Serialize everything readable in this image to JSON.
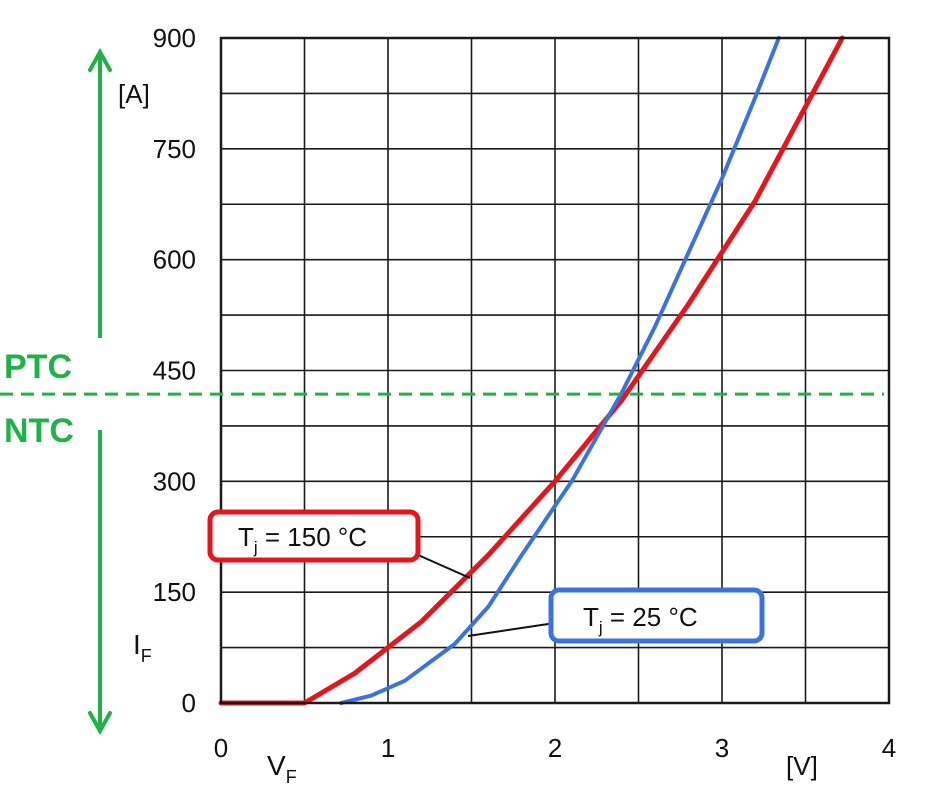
{
  "chart_data": {
    "type": "line",
    "xlim": [
      0,
      4
    ],
    "ylim": [
      0,
      900
    ],
    "x_ticks": [
      "0",
      "1",
      "2",
      "3",
      "4"
    ],
    "y_ticks": [
      "0",
      "150",
      "300",
      "450",
      "600",
      "750",
      "900"
    ],
    "x_unit": "[V]",
    "y_unit": "[A]",
    "xlabel": {
      "main": "V",
      "sub": "F"
    },
    "ylabel": {
      "main": "I",
      "sub": "F"
    },
    "grid": true,
    "series": [
      {
        "name": {
          "main": "T",
          "sub": "j",
          "rest": " = 150 °C"
        },
        "color": "#e8141b",
        "x": [
          0,
          0.5,
          0.8,
          1.2,
          1.6,
          2.0,
          2.4,
          2.8,
          3.2,
          3.72
        ],
        "y": [
          0,
          0,
          40,
          110,
          200,
          300,
          410,
          540,
          680,
          900
        ]
      },
      {
        "name": {
          "main": "T",
          "sub": "j",
          "rest": " = 25 °C"
        },
        "color": "#3a73e0",
        "x": [
          0.72,
          0.9,
          1.1,
          1.4,
          1.6,
          1.8,
          2.1,
          2.4,
          2.6,
          2.8,
          3.0,
          3.2,
          3.34
        ],
        "y": [
          0,
          10,
          30,
          80,
          130,
          200,
          300,
          420,
          510,
          610,
          710,
          820,
          900
        ]
      }
    ],
    "annotations": {
      "threshold_y": 418,
      "above_label": "PTC",
      "below_label": "NTC",
      "zone_color": "#1db346"
    }
  }
}
